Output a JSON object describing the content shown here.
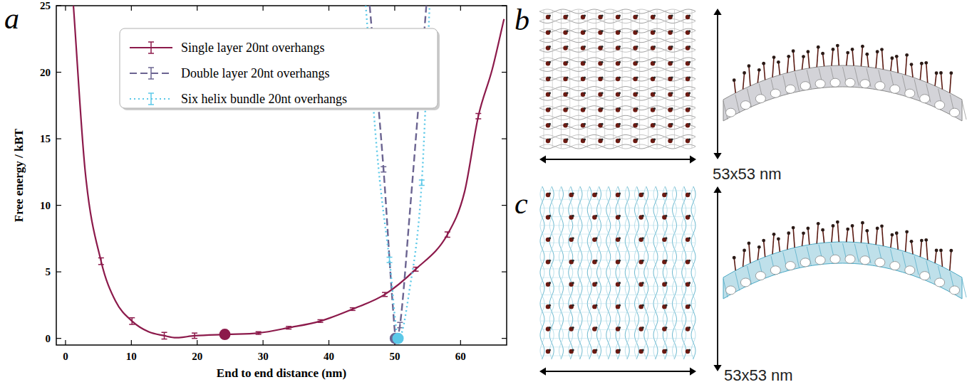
{
  "chart_data": {
    "type": "line",
    "xlabel": "End to end distance (nm)",
    "ylabel": "Free energy / kBT",
    "xlim": [
      -1.4,
      67
    ],
    "ylim": [
      -0.5,
      25
    ],
    "xticks": [
      0,
      10,
      20,
      30,
      40,
      50,
      60
    ],
    "yticks": [
      0,
      5,
      10,
      15,
      20,
      25
    ],
    "legend": "top",
    "series": [
      {
        "name": "Single layer 20nt overhangs",
        "color": "#8c1a4b",
        "line_style": "solid",
        "x": [
          1.2,
          3.0,
          5.4,
          7.6,
          10.1,
          12.6,
          15.0,
          16.8,
          19.6,
          24.5,
          29.3,
          33.9,
          38.7,
          43.6,
          48.5,
          53.2,
          58.0,
          60.6,
          62.7,
          64.8,
          66.6
        ],
        "values": [
          25,
          12.5,
          5.8,
          2.8,
          1.3,
          0.5,
          0.2,
          0.05,
          0.2,
          0.3,
          0.4,
          0.8,
          1.3,
          2.2,
          3.3,
          5.2,
          7.8,
          11.0,
          16.7,
          20.2,
          24.0
        ],
        "errors": [
          null,
          null,
          0.25,
          null,
          0.25,
          null,
          0.25,
          null,
          0.2,
          null,
          0.1,
          0.1,
          0.1,
          0.1,
          0.15,
          0.15,
          0.2,
          null,
          0.2,
          null,
          null
        ],
        "highlight": {
          "x": 24.2,
          "y": 0.3
        }
      },
      {
        "name": "Double layer 20nt overhangs",
        "color": "#6b6491",
        "line_style": "dashed",
        "x": [
          46.2,
          48.3,
          49.7,
          50.2,
          50.8,
          52.3,
          54.8
        ],
        "values": [
          25,
          12.7,
          2.5,
          0,
          1.0,
          9.5,
          25
        ],
        "errors": [
          null,
          0.2,
          null,
          null,
          0.2,
          null,
          null
        ],
        "highlight": {
          "x": 50.1,
          "y": 0
        }
      },
      {
        "name": "Six helix bundle 20nt overhangs",
        "color": "#5bc8e8",
        "line_style": "dotted",
        "x": [
          45.6,
          47.5,
          49.2,
          50.6,
          52.2,
          54.1,
          55.3
        ],
        "values": [
          25,
          13,
          5.9,
          0,
          3.5,
          11.7,
          25
        ],
        "errors": [
          null,
          null,
          0.2,
          null,
          null,
          0.2,
          null
        ],
        "highlight": {
          "x": 50.5,
          "y": 0
        }
      }
    ]
  },
  "figure": {
    "panel_labels": [
      "a",
      "b",
      "c"
    ],
    "size_labels": [
      "53x53 nm",
      "53x53 nm"
    ]
  }
}
